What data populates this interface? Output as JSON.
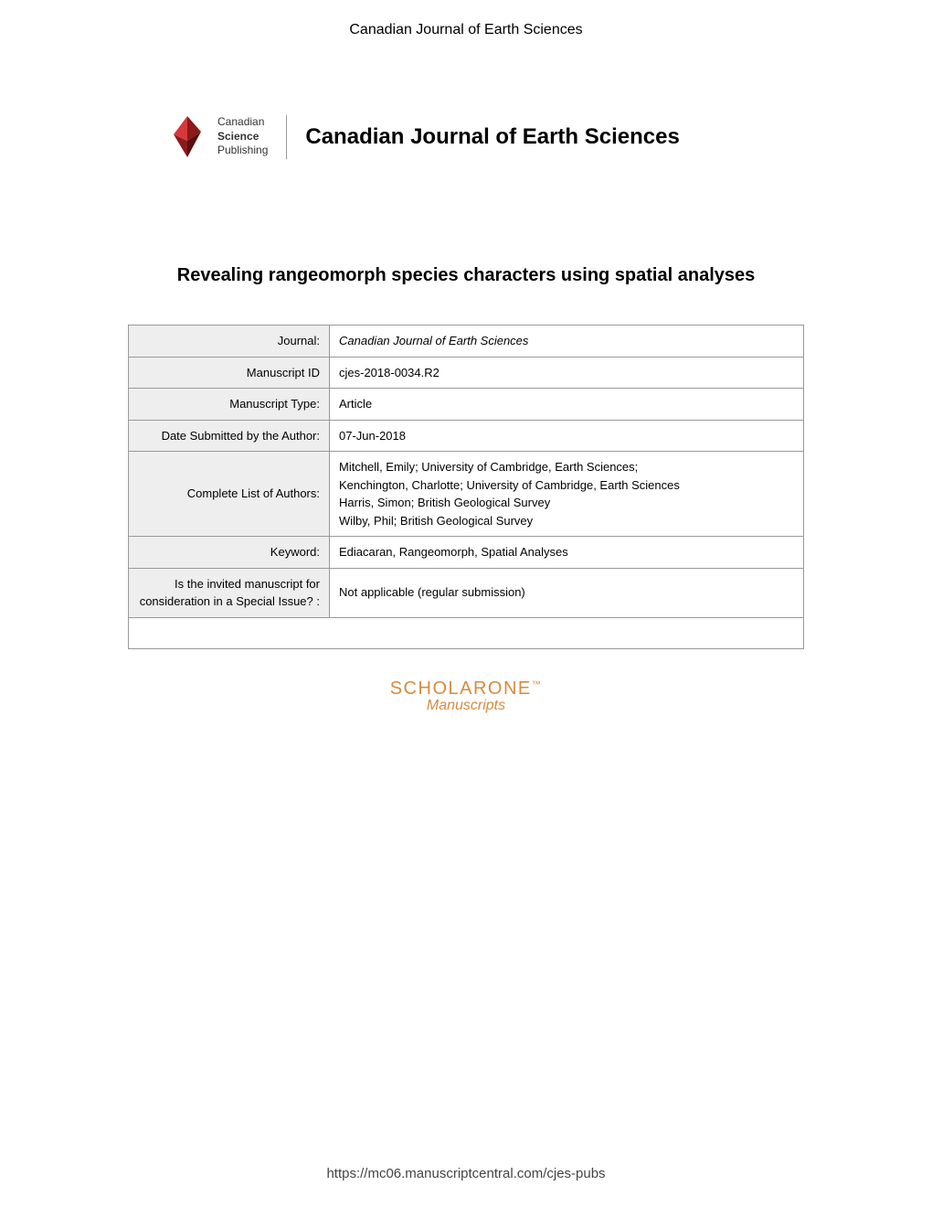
{
  "header": {
    "title": "Canadian Journal of Earth Sciences"
  },
  "publisher": {
    "line1": "Canadian",
    "line2": "Science",
    "line3": "Publishing",
    "logo_color_dark": "#8b1a1a",
    "logo_color_light": "#d8373d"
  },
  "journal": {
    "name": "Canadian Journal of Earth Sciences"
  },
  "article": {
    "title": "Revealing rangeomorph species characters using spatial analyses"
  },
  "table": {
    "rows": [
      {
        "label": "Journal:",
        "value": "Canadian Journal of Earth Sciences",
        "italic": true
      },
      {
        "label": "Manuscript ID",
        "value": "cjes-2018-0034.R2",
        "italic": false
      },
      {
        "label": "Manuscript Type:",
        "value": "Article",
        "italic": false
      },
      {
        "label": "Date Submitted by the Author:",
        "value": "07-Jun-2018",
        "italic": false
      },
      {
        "label": "Complete List of Authors:",
        "value": "Mitchell, Emily; University of Cambridge, Earth Sciences;\nKenchington, Charlotte; University of Cambridge, Earth Sciences\nHarris, Simon; British Geological Survey\nWilby, Phil; British Geological Survey",
        "italic": false
      },
      {
        "label": "Keyword:",
        "value": "Ediacaran, Rangeomorph, Spatial Analyses",
        "italic": false
      },
      {
        "label": "Is the invited manuscript for consideration in a Special Issue? :",
        "value": "Not applicable (regular submission)",
        "italic": false
      }
    ],
    "label_bg": "#eeeeee",
    "border_color": "#999999",
    "font_size": 13
  },
  "scholarone": {
    "main_part1": "SCHOLAR",
    "main_part2": "ONE",
    "tm": "™",
    "sub": "Manuscripts",
    "color": "#d68b3f"
  },
  "footer": {
    "url": "https://mc06.manuscriptcentral.com/cjes-pubs"
  }
}
